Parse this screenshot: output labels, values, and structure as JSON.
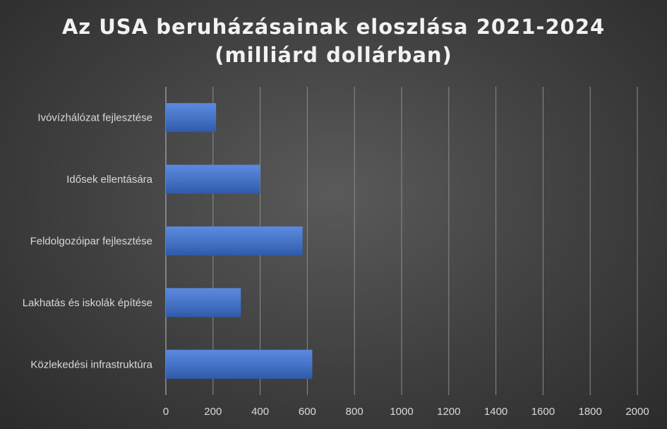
{
  "chart_data": {
    "type": "bar",
    "orientation": "horizontal",
    "title": "Az USA beruházásainak eloszlása 2021-2024",
    "subtitle": "(milliárd dollárban)",
    "categories": [
      "Ivóvízhálózat fejlesztése",
      "Idősek ellentására",
      "Feldolgozóipar fejlesztése",
      "Lakhatás és iskolák építése",
      "Közlekedési infrastruktúra"
    ],
    "values": [
      213,
      400,
      580,
      318,
      621
    ],
    "xlim": [
      0,
      2000
    ],
    "xticks": [
      "0",
      "200",
      "400",
      "600",
      "800",
      "1000",
      "1200",
      "1400",
      "1600",
      "1800",
      "2000"
    ],
    "xlabel": "",
    "ylabel": "",
    "grid": true,
    "bar_color": "#4472c4"
  }
}
